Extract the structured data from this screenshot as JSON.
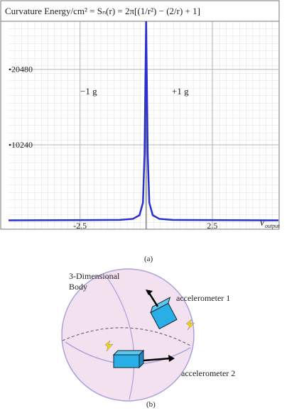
{
  "chart_data": {
    "type": "line",
    "title": "Curvature Energy/cm² = Sₙ(r) = 2π[(1/r²) − (2/r) + 1]",
    "xlabel": {
      "main": "V",
      "sub": "output"
    },
    "annotations": [
      "−1 g",
      "+1 g"
    ],
    "x": [
      -5.2,
      -1,
      -0.5,
      -0.25,
      -0.12,
      -0.06,
      0,
      0.06,
      0.12,
      0.25,
      0.5,
      1,
      5.0
    ],
    "series": [
      {
        "color": "#2b2fd0",
        "values": [
          0,
          60,
          200,
          700,
          2400,
          9000,
          27000,
          9000,
          2400,
          700,
          200,
          60,
          0
        ]
      }
    ],
    "xlim": [
      -5.2,
      5.0
    ],
    "xticks": [
      -2.5,
      2.5
    ],
    "ylim": [
      -1200,
      27000
    ],
    "yticks": [
      10240,
      20480
    ],
    "grid": true
  },
  "figure": {
    "caption_a": "(a)",
    "caption_b": "(b)",
    "body_label": [
      "3-Dimensional",
      "Body"
    ],
    "sensor_labels": [
      "accelerometer 1",
      "accelerometer 2"
    ]
  }
}
